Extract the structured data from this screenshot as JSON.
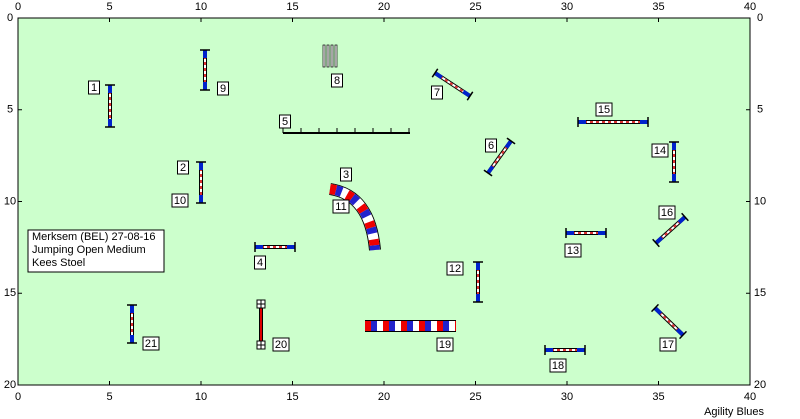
{
  "axes": {
    "xticks": [
      0,
      5,
      10,
      15,
      20,
      25,
      30,
      35,
      40
    ],
    "xlim": [
      0,
      40
    ],
    "yticks": [
      0,
      5,
      10,
      15,
      20
    ],
    "ylim": [
      0,
      20
    ]
  },
  "info": [
    "Merksem (BEL) 27-08-16",
    "Jumping Open Medium",
    "Kees Stoel"
  ],
  "obstacles": [
    "1",
    "2",
    "3",
    "4",
    "5",
    "6",
    "7",
    "8",
    "9",
    "10",
    "11",
    "12",
    "13",
    "14",
    "15",
    "16",
    "17",
    "18",
    "19",
    "20",
    "21"
  ],
  "footer": "Agility Blues"
}
